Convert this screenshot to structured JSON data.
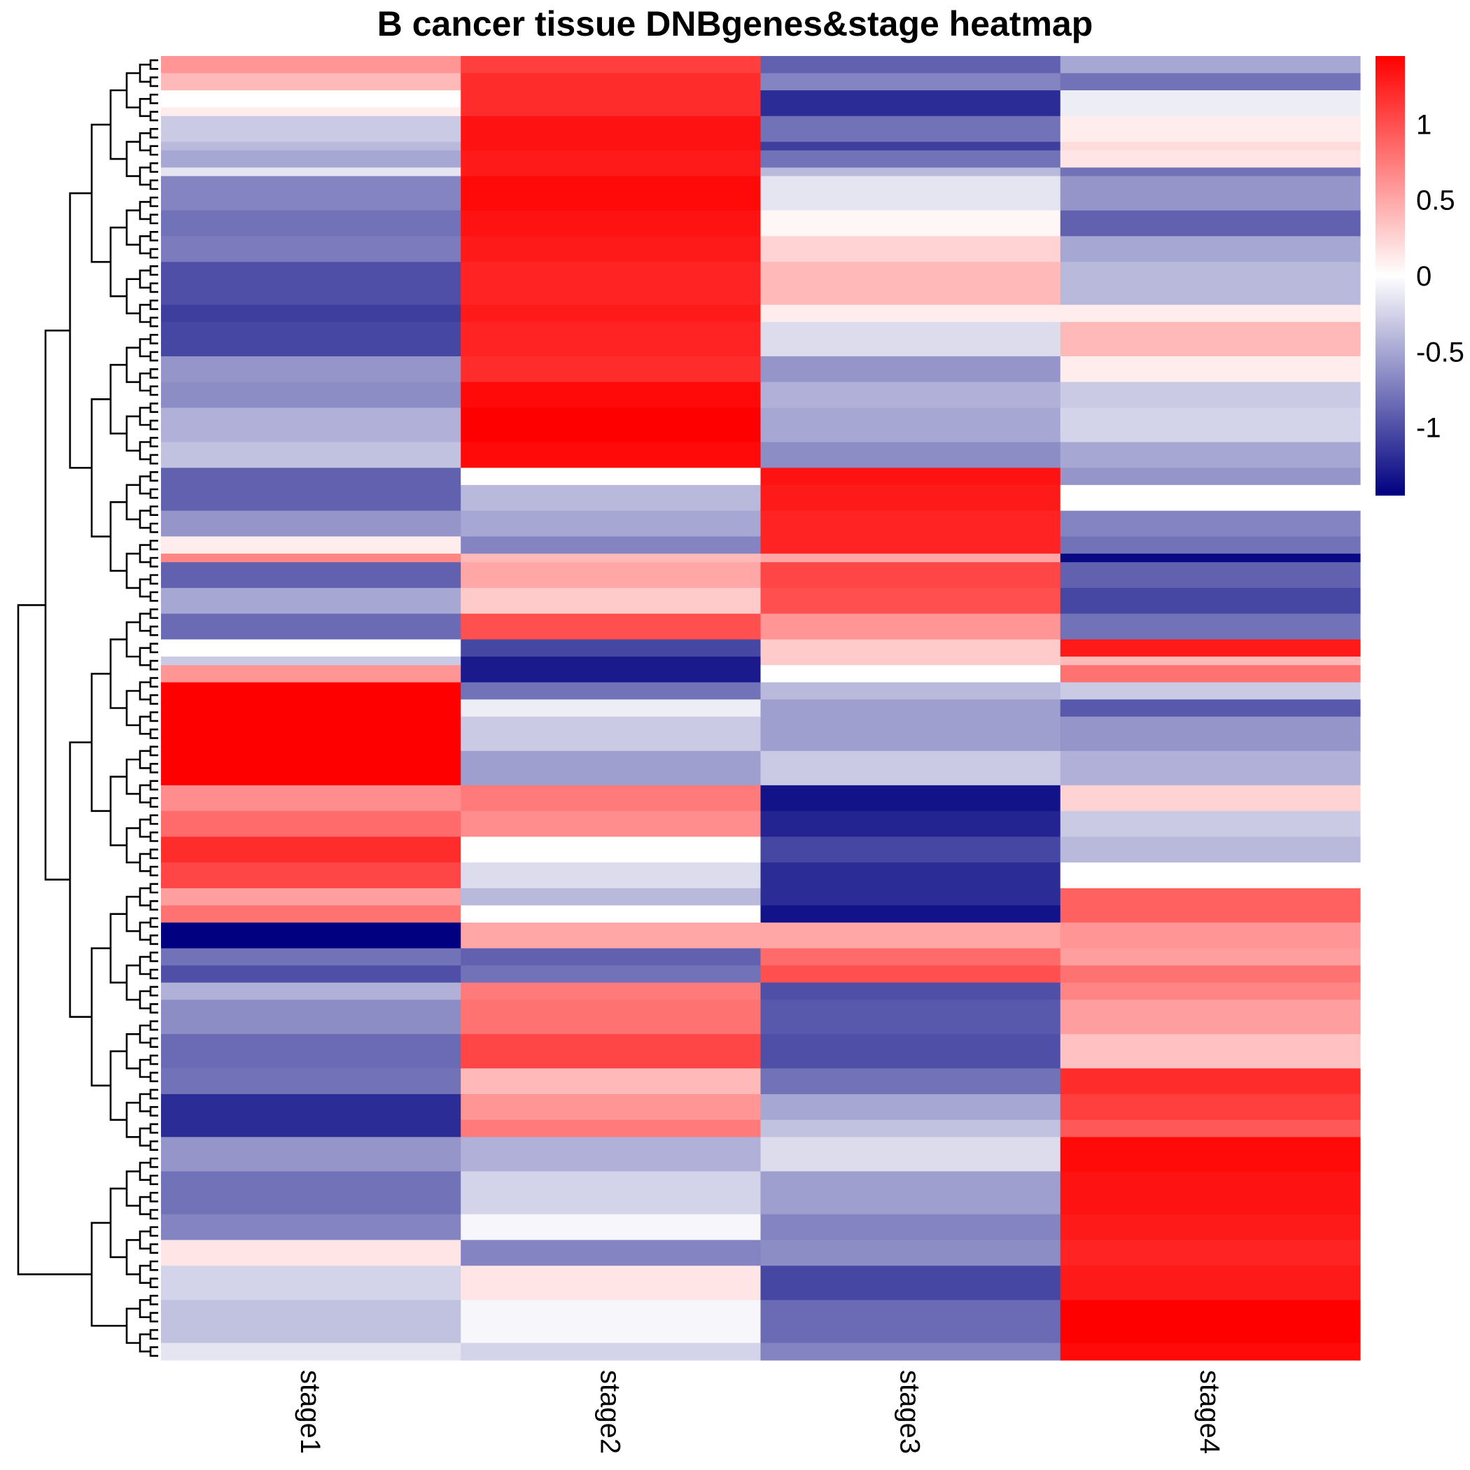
{
  "chart_data": {
    "type": "heatmap",
    "title": "B cancer tissue DNBgenes&stage heatmap",
    "columns": [
      "stage1",
      "stage2",
      "stage3",
      "stage4"
    ],
    "color_scale": {
      "low": "#000080",
      "mid": "#ffffff",
      "high": "#ff0000",
      "range": [
        -1.45,
        1.45
      ],
      "ticks": [
        1,
        0.5,
        0,
        -0.5,
        -1
      ],
      "tick_labels": [
        "1",
        "0.5",
        "0",
        "-0.5",
        "-1"
      ]
    },
    "blocks": [
      {
        "rows": 2,
        "values": [
          0.6,
          1.1,
          -0.9,
          -0.5
        ]
      },
      {
        "rows": 2,
        "values": [
          0.4,
          1.2,
          -0.7,
          -0.8
        ]
      },
      {
        "rows": 2,
        "values": [
          0.0,
          1.2,
          -1.2,
          -0.1
        ]
      },
      {
        "rows": 1,
        "values": [
          0.1,
          1.2,
          -1.2,
          -0.1
        ]
      },
      {
        "rows": 3,
        "values": [
          -0.3,
          1.35,
          -0.8,
          0.1
        ]
      },
      {
        "rows": 1,
        "values": [
          -0.4,
          1.35,
          -1.1,
          0.2
        ]
      },
      {
        "rows": 2,
        "values": [
          -0.5,
          1.3,
          -0.8,
          0.15
        ]
      },
      {
        "rows": 1,
        "values": [
          -0.15,
          1.3,
          -0.4,
          -0.8
        ]
      },
      {
        "rows": 4,
        "values": [
          -0.7,
          1.4,
          -0.15,
          -0.6
        ]
      },
      {
        "rows": 3,
        "values": [
          -0.8,
          1.35,
          0.05,
          -0.9
        ]
      },
      {
        "rows": 3,
        "values": [
          -0.75,
          1.3,
          0.25,
          -0.5
        ]
      },
      {
        "rows": 5,
        "values": [
          -1.0,
          1.25,
          0.4,
          -0.4
        ]
      },
      {
        "rows": 2,
        "values": [
          -1.1,
          1.3,
          0.1,
          0.1
        ]
      },
      {
        "rows": 4,
        "values": [
          -1.05,
          1.25,
          -0.2,
          0.4
        ]
      },
      {
        "rows": 3,
        "values": [
          -0.6,
          1.2,
          -0.6,
          0.1
        ]
      },
      {
        "rows": 3,
        "values": [
          -0.65,
          1.4,
          -0.45,
          -0.3
        ]
      },
      {
        "rows": 4,
        "values": [
          -0.45,
          1.45,
          -0.5,
          -0.25
        ]
      },
      {
        "rows": 3,
        "values": [
          -0.35,
          1.4,
          -0.65,
          -0.5
        ]
      },
      {
        "rows": 2,
        "values": [
          -0.9,
          0.0,
          1.35,
          -0.6
        ]
      },
      {
        "rows": 3,
        "values": [
          -0.9,
          -0.4,
          1.3,
          0.0
        ]
      },
      {
        "rows": 3,
        "values": [
          -0.6,
          -0.5,
          1.25,
          -0.7
        ]
      },
      {
        "rows": 2,
        "values": [
          0.1,
          -0.7,
          1.25,
          -0.8
        ]
      },
      {
        "rows": 1,
        "values": [
          0.7,
          0.4,
          0.5,
          -1.4
        ]
      },
      {
        "rows": 3,
        "values": [
          -0.9,
          0.5,
          1.05,
          -0.9
        ]
      },
      {
        "rows": 3,
        "values": [
          -0.5,
          0.3,
          1.0,
          -1.05
        ]
      },
      {
        "rows": 3,
        "values": [
          -0.85,
          1.0,
          0.6,
          -0.8
        ]
      },
      {
        "rows": 2,
        "values": [
          0.0,
          -1.05,
          0.3,
          1.3
        ]
      },
      {
        "rows": 1,
        "values": [
          -0.3,
          -1.3,
          0.3,
          0.4
        ]
      },
      {
        "rows": 2,
        "values": [
          0.6,
          -1.3,
          0.0,
          0.8
        ]
      },
      {
        "rows": 2,
        "values": [
          1.45,
          -0.8,
          -0.4,
          -0.3
        ]
      },
      {
        "rows": 2,
        "values": [
          1.45,
          -0.1,
          -0.55,
          -0.95
        ]
      },
      {
        "rows": 4,
        "values": [
          1.45,
          -0.3,
          -0.55,
          -0.6
        ]
      },
      {
        "rows": 4,
        "values": [
          1.45,
          -0.55,
          -0.3,
          -0.45
        ]
      },
      {
        "rows": 3,
        "values": [
          0.65,
          0.75,
          -1.35,
          0.25
        ]
      },
      {
        "rows": 3,
        "values": [
          0.85,
          0.65,
          -1.25,
          -0.3
        ]
      },
      {
        "rows": 3,
        "values": [
          1.2,
          0.0,
          -1.05,
          -0.4
        ]
      },
      {
        "rows": 3,
        "values": [
          1.05,
          -0.2,
          -1.2,
          0.0
        ]
      },
      {
        "rows": 2,
        "values": [
          0.55,
          -0.4,
          -1.2,
          0.9
        ]
      },
      {
        "rows": 2,
        "values": [
          0.8,
          0.0,
          -1.35,
          0.9
        ]
      },
      {
        "rows": 3,
        "values": [
          -1.45,
          0.5,
          0.5,
          0.6
        ]
      },
      {
        "rows": 2,
        "values": [
          -0.8,
          -0.9,
          0.85,
          0.55
        ]
      },
      {
        "rows": 2,
        "values": [
          -1.0,
          -0.8,
          1.0,
          0.8
        ]
      },
      {
        "rows": 2,
        "values": [
          -0.45,
          0.75,
          -1.0,
          0.7
        ]
      },
      {
        "rows": 4,
        "values": [
          -0.65,
          0.8,
          -0.95,
          0.55
        ]
      },
      {
        "rows": 4,
        "values": [
          -0.85,
          1.05,
          -1.0,
          0.35
        ]
      },
      {
        "rows": 3,
        "values": [
          -0.8,
          0.4,
          -0.8,
          1.2
        ]
      },
      {
        "rows": 3,
        "values": [
          -1.2,
          0.6,
          -0.5,
          1.1
        ]
      },
      {
        "rows": 2,
        "values": [
          -1.2,
          0.75,
          -0.35,
          0.95
        ]
      },
      {
        "rows": 4,
        "values": [
          -0.6,
          -0.45,
          -0.2,
          1.4
        ]
      },
      {
        "rows": 5,
        "values": [
          -0.8,
          -0.25,
          -0.55,
          1.35
        ]
      },
      {
        "rows": 3,
        "values": [
          -0.7,
          -0.05,
          -0.7,
          1.3
        ]
      },
      {
        "rows": 3,
        "values": [
          0.15,
          -0.7,
          -0.65,
          1.25
        ]
      },
      {
        "rows": 4,
        "values": [
          -0.25,
          0.15,
          -1.05,
          1.3
        ]
      },
      {
        "rows": 5,
        "values": [
          -0.35,
          -0.05,
          -0.85,
          1.45
        ]
      },
      {
        "rows": 2,
        "values": [
          -0.15,
          -0.25,
          -0.7,
          1.4
        ]
      }
    ]
  }
}
